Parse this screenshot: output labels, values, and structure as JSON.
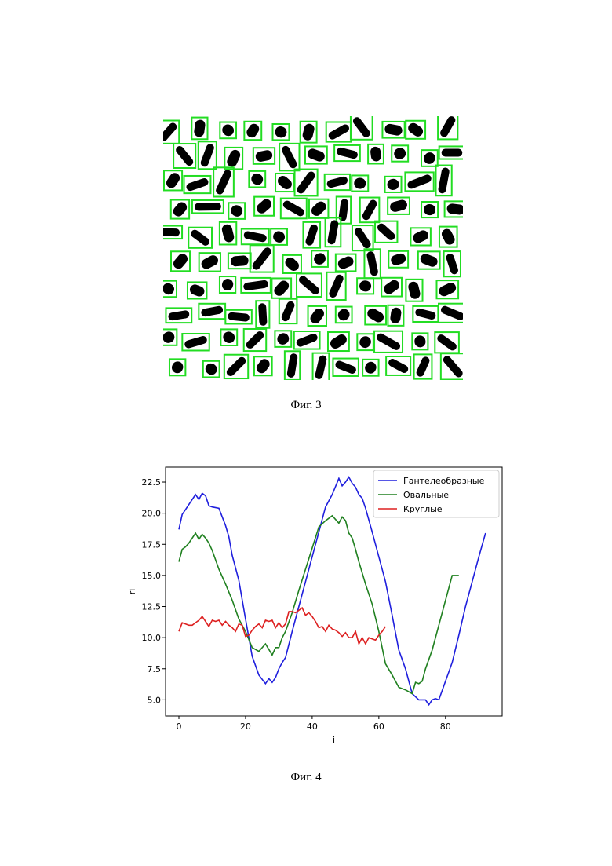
{
  "figure3": {
    "caption": "Фиг. 3",
    "box_color": "#22dd22",
    "particle_color": "#000000"
  },
  "figure4": {
    "caption": "Фиг. 4"
  },
  "chart_data": {
    "type": "line",
    "title": "",
    "xlabel": "i",
    "ylabel": "ri",
    "xlim": [
      -4,
      97
    ],
    "ylim": [
      3.7,
      23.7
    ],
    "xticks": [
      0,
      20,
      40,
      60,
      80
    ],
    "yticks": [
      5.0,
      7.5,
      10.0,
      12.5,
      15.0,
      17.5,
      20.0,
      22.5
    ],
    "ytick_labels": [
      "5.0",
      "7.5",
      "10.0",
      "12.5",
      "15.0",
      "17.5",
      "20.0",
      "22.5"
    ],
    "grid": false,
    "legend_position": "top-right",
    "series": [
      {
        "name": "Гантелеобразные",
        "color": "#1f1fdd",
        "x": [
          0,
          1,
          2,
          3,
          4,
          5,
          6,
          7,
          8,
          9,
          10,
          12,
          14,
          15,
          16,
          18,
          20,
          22,
          24,
          26,
          27,
          28,
          29,
          30,
          31,
          32,
          34,
          36,
          38,
          40,
          42,
          44,
          46,
          48,
          49,
          50,
          51,
          52,
          53,
          54,
          55,
          56,
          58,
          60,
          62,
          64,
          66,
          68,
          70,
          72,
          74,
          75,
          76,
          77,
          78,
          80,
          82,
          84,
          86,
          88,
          90,
          92
        ],
        "y": [
          18.7,
          19.9,
          20.3,
          20.7,
          21.1,
          21.5,
          21.1,
          21.6,
          21.4,
          20.6,
          20.5,
          20.4,
          19.0,
          18.1,
          16.6,
          14.6,
          11.5,
          8.5,
          7.0,
          6.3,
          6.7,
          6.4,
          6.8,
          7.5,
          8.0,
          8.4,
          10.5,
          12.5,
          14.5,
          16.5,
          18.5,
          20.5,
          21.5,
          22.8,
          22.2,
          22.5,
          22.9,
          22.4,
          22.1,
          21.5,
          21.2,
          20.4,
          18.5,
          16.5,
          14.5,
          11.8,
          9.0,
          7.5,
          5.5,
          5.0,
          5.0,
          4.6,
          5.0,
          5.1,
          5.0,
          6.5,
          8.0,
          10.2,
          12.5,
          14.5,
          16.5,
          18.4
        ]
      },
      {
        "name": "Овальные",
        "color": "#208020",
        "x": [
          0,
          1,
          2,
          3,
          4,
          5,
          6,
          7,
          8,
          9,
          10,
          12,
          14,
          16,
          18,
          20,
          22,
          24,
          26,
          28,
          29,
          30,
          31,
          32,
          34,
          36,
          38,
          40,
          42,
          44,
          46,
          48,
          49,
          50,
          51,
          52,
          53,
          54,
          56,
          58,
          60,
          62,
          64,
          66,
          68,
          70,
          71,
          72,
          73,
          74,
          76,
          78,
          80,
          82,
          84
        ],
        "y": [
          16.1,
          17.1,
          17.3,
          17.6,
          18.0,
          18.4,
          17.9,
          18.3,
          18.0,
          17.6,
          17.0,
          15.5,
          14.3,
          13.0,
          11.5,
          10.5,
          9.2,
          8.9,
          9.5,
          8.6,
          9.2,
          9.2,
          10.0,
          10.5,
          12.0,
          13.8,
          15.5,
          17.2,
          18.9,
          19.4,
          19.8,
          19.2,
          19.7,
          19.4,
          18.4,
          18.0,
          17.1,
          16.1,
          14.3,
          12.7,
          10.5,
          7.9,
          7.0,
          6.0,
          5.8,
          5.5,
          6.4,
          6.3,
          6.5,
          7.5,
          9.0,
          11.0,
          13.0,
          15.0,
          15.0
        ]
      },
      {
        "name": "Круглые",
        "color": "#dd2020",
        "x": [
          0,
          1,
          2,
          3,
          4,
          5,
          6,
          7,
          8,
          9,
          10,
          11,
          12,
          13,
          14,
          15,
          16,
          17,
          18,
          19,
          20,
          21,
          22,
          23,
          24,
          25,
          26,
          27,
          28,
          29,
          30,
          31,
          32,
          33,
          34,
          35,
          36,
          37,
          38,
          39,
          40,
          41,
          42,
          43,
          44,
          45,
          46,
          47,
          48,
          49,
          50,
          51,
          52,
          53,
          54,
          55,
          56,
          57,
          58,
          59,
          60,
          61,
          62
        ],
        "y": [
          10.5,
          11.2,
          11.1,
          11.0,
          11.0,
          11.2,
          11.4,
          11.7,
          11.3,
          10.9,
          11.4,
          11.3,
          11.4,
          11.0,
          11.3,
          11.0,
          10.8,
          10.5,
          11.1,
          11.0,
          10.1,
          10.2,
          10.6,
          10.9,
          11.1,
          10.8,
          11.4,
          11.3,
          11.4,
          10.8,
          11.2,
          10.8,
          11.1,
          12.1,
          12.1,
          12.0,
          12.2,
          12.4,
          11.8,
          12.0,
          11.7,
          11.3,
          10.8,
          10.9,
          10.5,
          11.0,
          10.7,
          10.6,
          10.4,
          10.1,
          10.4,
          10.0,
          10.0,
          10.5,
          9.5,
          10.0,
          9.5,
          10.0,
          9.9,
          9.8,
          10.2,
          10.5,
          10.9
        ]
      }
    ]
  }
}
